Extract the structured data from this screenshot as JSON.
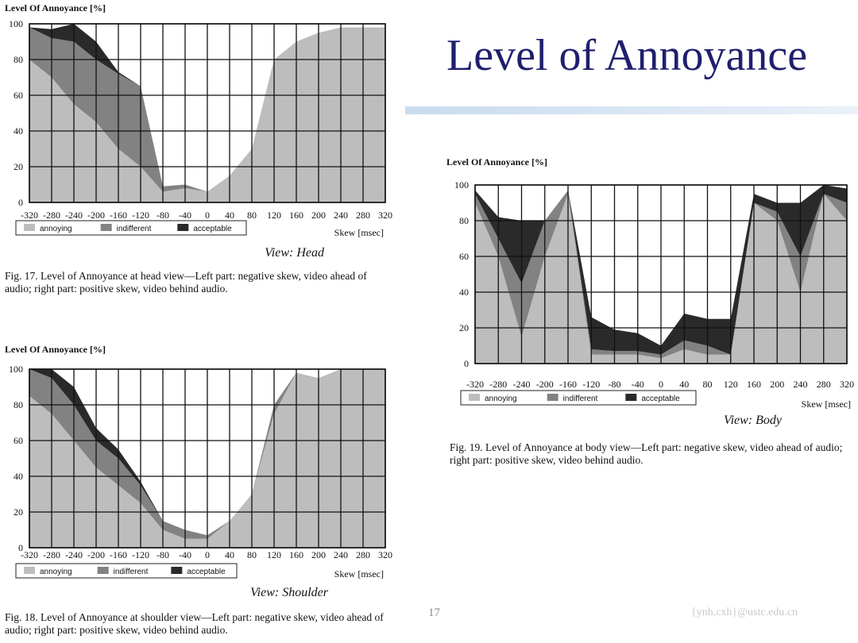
{
  "slide": {
    "title": "Level of Annoyance",
    "page_number": "17",
    "footer": "{ynh,cxh}@ustc.edu.cn"
  },
  "colors": {
    "annoying": "#bdbdbd",
    "indifferent": "#828282",
    "acceptable": "#2a2a2a",
    "title": "#1f1f6e"
  },
  "chart_data": [
    {
      "type": "area",
      "stacked": true,
      "ylabel": "Level Of Annoyance [%]",
      "xlabel": "Skew [msec]",
      "view": "View: Head",
      "caption": "Fig. 17.   Level of Annoyance at head view—Left part: negative skew, video ahead of audio; right part: positive skew, video behind audio.",
      "x": [
        -320,
        -280,
        -240,
        -200,
        -160,
        -120,
        -80,
        -40,
        0,
        40,
        80,
        120,
        160,
        200,
        240,
        280,
        320
      ],
      "xticks": [
        "-320",
        "-280",
        "-240",
        "-200",
        "-160",
        "-120",
        "-80",
        "-40",
        "0",
        "40",
        "80",
        "120",
        "160",
        "200",
        "240",
        "280",
        "320"
      ],
      "yticks": [
        "0",
        "20",
        "40",
        "60",
        "80",
        "100"
      ],
      "ylim": [
        0,
        100
      ],
      "legend": [
        "annoying",
        "indifferent",
        "acceptable"
      ],
      "series": [
        {
          "name": "annoying",
          "values": [
            80,
            70,
            55,
            45,
            30,
            20,
            6,
            8,
            6,
            15,
            30,
            80,
            90,
            95,
            98,
            98,
            98
          ]
        },
        {
          "name": "indifferent",
          "values": [
            18,
            22,
            35,
            35,
            42,
            45,
            3,
            2,
            0,
            0,
            0,
            0,
            0,
            0,
            0,
            0,
            0
          ]
        },
        {
          "name": "acceptable",
          "values": [
            0,
            5,
            10,
            10,
            1,
            0,
            0,
            0,
            0,
            0,
            0,
            0,
            0,
            0,
            0,
            0,
            0
          ]
        }
      ]
    },
    {
      "type": "area",
      "stacked": true,
      "ylabel": "Level Of Annoyance [%]",
      "xlabel": "Skew [msec]",
      "view": "View: Shoulder",
      "caption": "Fig. 18.   Level of Annoyance at shoulder view—Left part: negative skew, video ahead of audio; right part: positive skew, video behind audio.",
      "x": [
        -320,
        -280,
        -240,
        -200,
        -160,
        -120,
        -80,
        -40,
        0,
        40,
        80,
        120,
        160,
        200,
        240,
        280,
        320
      ],
      "xticks": [
        "-320",
        "-280",
        "-240",
        "-200",
        "-160",
        "-120",
        "-80",
        "-40",
        "0",
        "40",
        "80",
        "120",
        "160",
        "200",
        "240",
        "280",
        "320"
      ],
      "yticks": [
        "0",
        "20",
        "40",
        "60",
        "80",
        "100"
      ],
      "ylim": [
        0,
        100
      ],
      "legend": [
        "annoying",
        "indifferent",
        "acceptable"
      ],
      "series": [
        {
          "name": "annoying",
          "values": [
            85,
            75,
            60,
            45,
            35,
            25,
            10,
            5,
            5,
            15,
            30,
            75,
            98,
            95,
            100,
            100,
            100
          ]
        },
        {
          "name": "indifferent",
          "values": [
            15,
            20,
            20,
            15,
            15,
            10,
            5,
            5,
            2,
            0,
            0,
            5,
            0,
            0,
            0,
            0,
            0
          ]
        },
        {
          "name": "acceptable",
          "values": [
            0,
            5,
            10,
            7,
            5,
            2,
            0,
            0,
            0,
            0,
            0,
            0,
            0,
            0,
            0,
            0,
            0
          ]
        }
      ]
    },
    {
      "type": "area",
      "stacked": true,
      "ylabel": "Level Of Annoyance [%]",
      "xlabel": "Skew [msec]",
      "view": "View: Body",
      "caption": "Fig. 19.   Level of Annoyance at body view—Left part: negative skew, video ahead of audio; right part: positive skew, video behind audio.",
      "x": [
        -320,
        -280,
        -240,
        -200,
        -160,
        -120,
        -80,
        -40,
        0,
        40,
        80,
        120,
        160,
        200,
        240,
        280,
        320
      ],
      "xticks": [
        "-320",
        "-280",
        "-240",
        "-200",
        "-160",
        "-120",
        "-80",
        "-40",
        "0",
        "40",
        "80",
        "120",
        "160",
        "200",
        "240",
        "280",
        "320"
      ],
      "yticks": [
        "0",
        "20",
        "40",
        "60",
        "80",
        "100"
      ],
      "ylim": [
        0,
        100
      ],
      "legend": [
        "annoying",
        "indifferent",
        "acceptable"
      ],
      "series": [
        {
          "name": "annoying",
          "values": [
            90,
            60,
            15,
            60,
            95,
            5,
            5,
            5,
            3,
            8,
            5,
            5,
            90,
            80,
            40,
            95,
            80
          ]
        },
        {
          "name": "indifferent",
          "values": [
            5,
            10,
            30,
            20,
            2,
            3,
            2,
            2,
            2,
            5,
            5,
            0,
            0,
            5,
            20,
            0,
            10
          ]
        },
        {
          "name": "acceptable",
          "values": [
            2,
            12,
            35,
            0,
            0,
            18,
            12,
            10,
            5,
            15,
            15,
            20,
            5,
            5,
            30,
            5,
            8
          ]
        }
      ]
    }
  ]
}
